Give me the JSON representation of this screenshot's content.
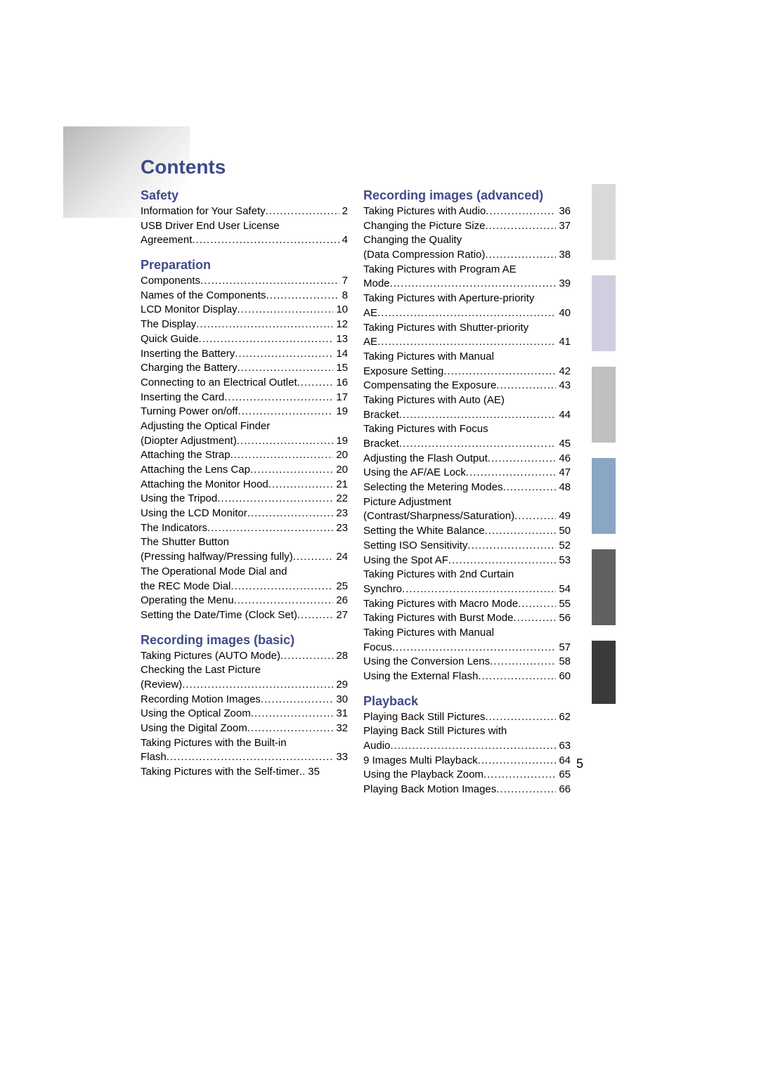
{
  "title": "Contents",
  "page_number": "5",
  "colors": {
    "heading": "#3f4a8a",
    "text": "#000000",
    "gradient_start": "#b8b8b8",
    "gradient_end": "#ffffff",
    "tab1": "#d9d9d9",
    "tab2": "#cfcfe0",
    "tab3": "#c0c0c0",
    "tab4": "#8aa6c2",
    "tab5": "#606060",
    "tab6": "#3a3a3a"
  },
  "typography": {
    "title_size_pt": 21,
    "heading_size_pt": 13,
    "body_size_pt": 11
  },
  "sections": {
    "safety": {
      "heading": "Safety",
      "items": [
        {
          "label": "Information for Your Safety",
          "page": "2",
          "cont": false
        },
        {
          "label": "USB Driver End User License",
          "cont": true
        },
        {
          "label": "Agreement",
          "page": "4",
          "cont": false
        }
      ]
    },
    "preparation": {
      "heading": "Preparation",
      "items": [
        {
          "label": "Components",
          "page": "7"
        },
        {
          "label": "Names of the Components",
          "page": "8"
        },
        {
          "label": "LCD Monitor Display",
          "page": "10"
        },
        {
          "label": "The Display",
          "page": "12"
        },
        {
          "label": "Quick Guide",
          "page": "13"
        },
        {
          "label": "Inserting the Battery",
          "page": "14"
        },
        {
          "label": "Charging the Battery",
          "page": "15"
        },
        {
          "label": "Connecting to an Electrical Outlet",
          "page": "16"
        },
        {
          "label": "Inserting the Card",
          "page": "17"
        },
        {
          "label": "Turning Power on/off",
          "page": "19"
        },
        {
          "label": "Adjusting the Optical Finder",
          "cont": true
        },
        {
          "label": "(Diopter Adjustment)",
          "page": "19"
        },
        {
          "label": "Attaching the Strap",
          "page": "20"
        },
        {
          "label": "Attaching the Lens Cap",
          "page": "20"
        },
        {
          "label": "Attaching the Monitor Hood",
          "page": "21"
        },
        {
          "label": "Using the Tripod",
          "page": "22"
        },
        {
          "label": "Using the LCD Monitor",
          "page": "23"
        },
        {
          "label": "The Indicators",
          "page": "23"
        },
        {
          "label": "The Shutter Button",
          "cont": true
        },
        {
          "label": "(Pressing halfway/Pressing fully)",
          "page": "24"
        },
        {
          "label": "The Operational Mode Dial and",
          "cont": true
        },
        {
          "label": "the REC Mode Dial",
          "page": "25"
        },
        {
          "label": "Operating the Menu",
          "page": "26"
        },
        {
          "label": "Setting the Date/Time (Clock Set)",
          "page": "27"
        }
      ]
    },
    "recording_basic": {
      "heading": "Recording images (basic)",
      "items": [
        {
          "label": "Taking Pictures (AUTO Mode)",
          "page": "28"
        },
        {
          "label": "Checking the Last Picture",
          "cont": true
        },
        {
          "label": "(Review)",
          "page": "29"
        },
        {
          "label": "Recording Motion Images",
          "page": "30"
        },
        {
          "label": "Using the Optical Zoom",
          "page": "31"
        },
        {
          "label": "Using the Digital Zoom",
          "page": "32"
        },
        {
          "label": "Taking Pictures with the Built-in",
          "cont": true
        },
        {
          "label": "Flash",
          "page": "33"
        },
        {
          "label": "Taking Pictures with the Self-timer",
          "page": "35",
          "tight": true
        }
      ]
    },
    "recording_advanced": {
      "heading": "Recording images (advanced)",
      "items": [
        {
          "label": "Taking Pictures with Audio",
          "page": "36"
        },
        {
          "label": "Changing the Picture Size",
          "page": "37"
        },
        {
          "label": "Changing the Quality",
          "cont": true
        },
        {
          "label": "(Data Compression Ratio)",
          "page": "38"
        },
        {
          "label": "Taking Pictures with Program AE",
          "cont": true
        },
        {
          "label": "Mode",
          "page": "39"
        },
        {
          "label": "Taking Pictures with Aperture-priority",
          "cont": true
        },
        {
          "label": "AE",
          "page": "40"
        },
        {
          "label": "Taking Pictures with Shutter-priority",
          "cont": true
        },
        {
          "label": "AE",
          "page": "41"
        },
        {
          "label": "Taking Pictures with Manual",
          "cont": true
        },
        {
          "label": "Exposure Setting",
          "page": "42"
        },
        {
          "label": "Compensating the Exposure",
          "page": "43"
        },
        {
          "label": "Taking Pictures with Auto (AE)",
          "cont": true
        },
        {
          "label": "Bracket",
          "page": "44"
        },
        {
          "label": "Taking Pictures with Focus",
          "cont": true
        },
        {
          "label": "Bracket",
          "page": "45"
        },
        {
          "label": "Adjusting the Flash Output",
          "page": "46"
        },
        {
          "label": "Using the AF/AE Lock",
          "page": "47"
        },
        {
          "label": "Selecting the Metering Modes",
          "page": "48"
        },
        {
          "label": "Picture Adjustment",
          "cont": true
        },
        {
          "label": "(Contrast/Sharpness/Saturation)",
          "page": "49"
        },
        {
          "label": "Setting the White Balance",
          "page": "50"
        },
        {
          "label": "Setting ISO Sensitivity",
          "page": "52"
        },
        {
          "label": "Using the Spot AF",
          "page": "53"
        },
        {
          "label": "Taking Pictures with 2nd Curtain",
          "cont": true
        },
        {
          "label": "Synchro",
          "page": "54"
        },
        {
          "label": "Taking Pictures with Macro Mode",
          "page": "55"
        },
        {
          "label": "Taking Pictures with Burst Mode",
          "page": "56"
        },
        {
          "label": "Taking Pictures with Manual",
          "cont": true
        },
        {
          "label": "Focus",
          "page": "57"
        },
        {
          "label": "Using the Conversion Lens",
          "page": "58"
        },
        {
          "label": "Using the External Flash",
          "page": "60"
        }
      ]
    },
    "playback": {
      "heading": "Playback",
      "items": [
        {
          "label": "Playing Back Still Pictures",
          "page": "62"
        },
        {
          "label": "Playing Back Still Pictures with",
          "cont": true
        },
        {
          "label": "Audio",
          "page": "63"
        },
        {
          "label": "9 Images Multi Playback",
          "page": "64"
        },
        {
          "label": "Using the Playback Zoom",
          "page": "65"
        },
        {
          "label": "Playing Back Motion Images",
          "page": "66"
        }
      ]
    }
  }
}
